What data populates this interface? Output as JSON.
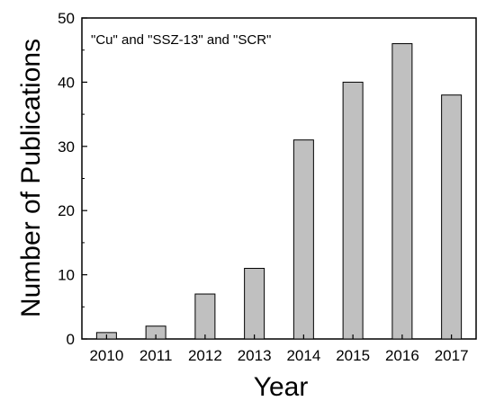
{
  "chart_data": {
    "type": "bar",
    "annotation": "\"Cu\" and \"SSZ-13\" and \"SCR\"",
    "xlabel": "Year",
    "ylabel": "Number of Publications",
    "categories": [
      "2010",
      "2011",
      "2012",
      "2013",
      "2014",
      "2015",
      "2016",
      "2017"
    ],
    "values": [
      1,
      2,
      7,
      11,
      31,
      40,
      46,
      38
    ],
    "ylim": [
      0,
      50
    ],
    "yticks": [
      0,
      10,
      20,
      30,
      40,
      50
    ],
    "grid": false,
    "bar_color": "#c0c0c0",
    "bar_edge_color": "#000000"
  }
}
